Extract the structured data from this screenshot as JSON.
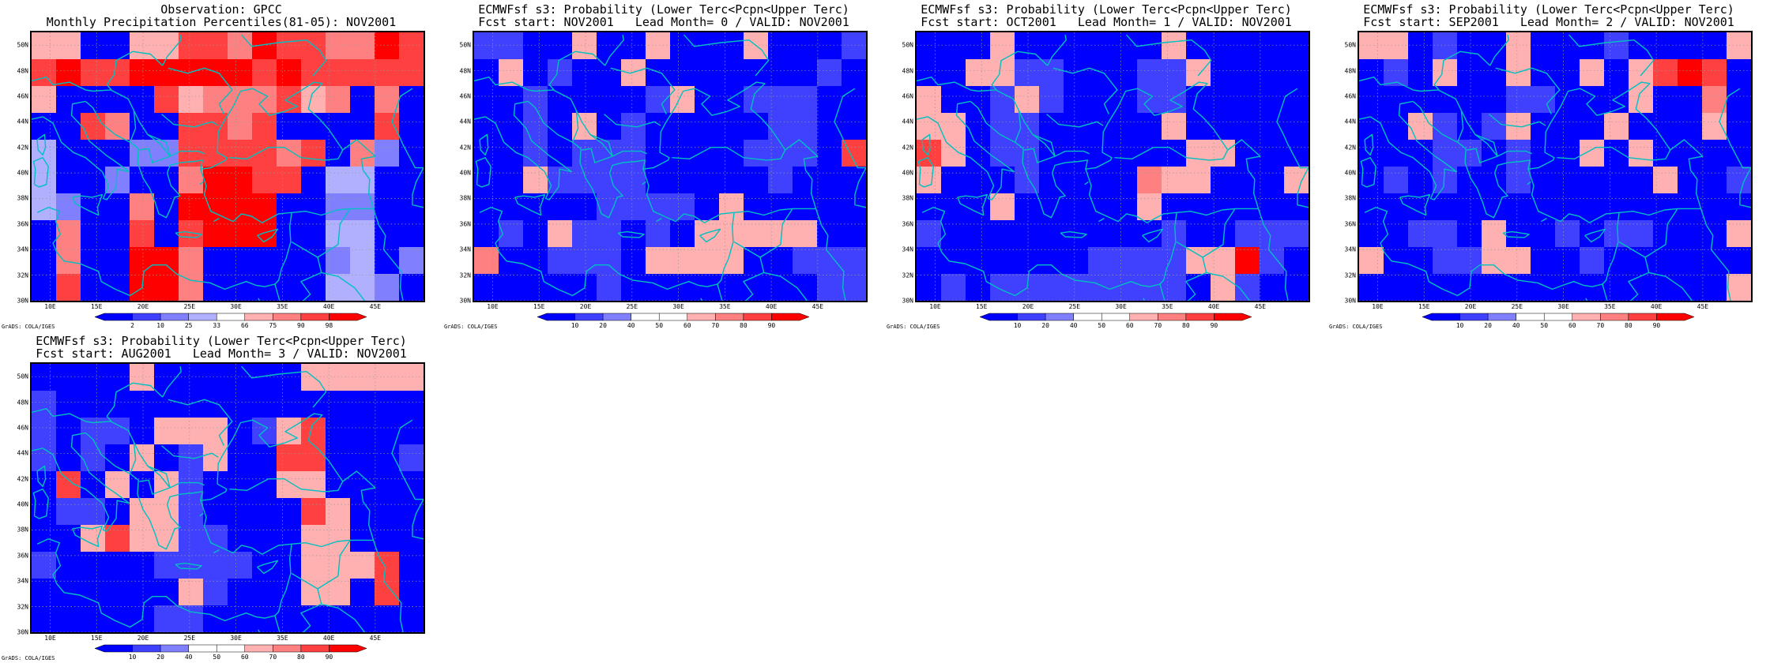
{
  "panels": [
    {
      "title_line1": "Observation: GPCC",
      "title_line2": "Monthly Precipitation Percentiles(81-05): NOV2001",
      "legend": {
        "labels": [
          "2",
          "10",
          "25",
          "33",
          "66",
          "75",
          "90",
          "98"
        ],
        "colors": [
          "#0000ff",
          "#4040ff",
          "#8080ff",
          "#b0b0ff",
          "#ffffff",
          "#ffb0b0",
          "#ff8080",
          "#ff4040",
          "#ff0000"
        ]
      },
      "credit": "GrADS: COLA/IGES",
      "grid": [
        [
          5,
          5,
          0,
          0,
          5,
          5,
          7,
          7,
          6,
          8,
          7,
          7,
          6,
          6,
          8,
          7
        ],
        [
          7,
          8,
          7,
          7,
          8,
          8,
          8,
          8,
          8,
          7,
          8,
          7,
          7,
          7,
          7,
          7
        ],
        [
          5,
          0,
          0,
          0,
          0,
          7,
          5,
          6,
          6,
          6,
          7,
          5,
          6,
          0,
          6,
          0
        ],
        [
          0,
          0,
          7,
          6,
          0,
          0,
          7,
          7,
          6,
          7,
          0,
          0,
          0,
          0,
          7,
          0
        ],
        [
          3,
          0,
          0,
          0,
          2,
          2,
          7,
          7,
          7,
          7,
          6,
          7,
          0,
          6,
          2,
          0
        ],
        [
          3,
          0,
          0,
          2,
          0,
          0,
          6,
          8,
          8,
          7,
          7,
          0,
          3,
          3,
          0,
          0
        ],
        [
          3,
          2,
          0,
          0,
          6,
          0,
          8,
          8,
          8,
          8,
          0,
          0,
          2,
          2,
          0,
          0
        ],
        [
          0,
          6,
          0,
          0,
          7,
          0,
          7,
          8,
          8,
          8,
          0,
          0,
          3,
          3,
          0,
          0
        ],
        [
          0,
          6,
          0,
          0,
          8,
          8,
          6,
          0,
          0,
          0,
          0,
          0,
          2,
          3,
          0,
          2
        ],
        [
          0,
          7,
          0,
          0,
          8,
          8,
          6,
          0,
          0,
          0,
          0,
          0,
          3,
          3,
          2,
          0
        ]
      ]
    },
    {
      "title_line1": "ECMWFsf s3: Probability (Lower Terc<Pcpn<Upper Terc)",
      "title_line2": "Fcst start: NOV2001   Lead Month= 0 / VALID: NOV2001",
      "legend": {
        "labels": [
          "10",
          "20",
          "40",
          "50",
          "60",
          "70",
          "80",
          "90"
        ],
        "colors": [
          "#0000ff",
          "#4040ff",
          "#8080ff",
          "#ffffff",
          "#ffffff",
          "#ffb0b0",
          "#ff8080",
          "#ff4040",
          "#ff0000"
        ]
      },
      "credit": "GrADS: COLA/IGES",
      "grid": [
        [
          1,
          1,
          0,
          0,
          5,
          0,
          0,
          5,
          0,
          0,
          0,
          5,
          0,
          0,
          0,
          1
        ],
        [
          0,
          5,
          0,
          1,
          0,
          0,
          5,
          0,
          0,
          0,
          0,
          0,
          0,
          0,
          1,
          0
        ],
        [
          0,
          0,
          1,
          0,
          0,
          0,
          0,
          1,
          5,
          0,
          0,
          1,
          1,
          1,
          0,
          0
        ],
        [
          0,
          0,
          1,
          0,
          5,
          0,
          1,
          0,
          0,
          0,
          0,
          0,
          1,
          1,
          0,
          0
        ],
        [
          0,
          0,
          1,
          0,
          1,
          1,
          1,
          0,
          0,
          0,
          0,
          1,
          1,
          1,
          0,
          7
        ],
        [
          0,
          0,
          5,
          1,
          1,
          1,
          1,
          0,
          0,
          0,
          0,
          0,
          1,
          0,
          0,
          0
        ],
        [
          0,
          0,
          0,
          0,
          0,
          1,
          1,
          1,
          1,
          0,
          5,
          0,
          0,
          0,
          0,
          0
        ],
        [
          0,
          1,
          0,
          5,
          1,
          1,
          0,
          1,
          0,
          5,
          5,
          5,
          5,
          5,
          0,
          0
        ],
        [
          6,
          0,
          0,
          1,
          1,
          1,
          0,
          5,
          5,
          5,
          5,
          0,
          0,
          1,
          1,
          1
        ],
        [
          0,
          0,
          0,
          0,
          0,
          1,
          0,
          0,
          0,
          0,
          0,
          0,
          0,
          0,
          1,
          1
        ]
      ]
    },
    {
      "title_line1": "ECMWFsf s3: Probability (Lower Terc<Pcpn<Upper Terc)",
      "title_line2": "Fcst start: OCT2001   Lead Month= 1 / VALID: NOV2001",
      "legend": {
        "labels": [
          "10",
          "20",
          "40",
          "50",
          "60",
          "70",
          "80",
          "90"
        ],
        "colors": [
          "#0000ff",
          "#4040ff",
          "#8080ff",
          "#ffffff",
          "#ffffff",
          "#ffb0b0",
          "#ff8080",
          "#ff4040",
          "#ff0000"
        ]
      },
      "credit": "GrADS: COLA/IGES",
      "grid": [
        [
          0,
          0,
          0,
          5,
          0,
          0,
          0,
          0,
          0,
          0,
          5,
          0,
          0,
          0,
          0,
          0
        ],
        [
          0,
          0,
          5,
          5,
          1,
          1,
          0,
          0,
          0,
          1,
          1,
          5,
          0,
          0,
          0,
          0
        ],
        [
          5,
          0,
          0,
          1,
          5,
          1,
          0,
          0,
          0,
          1,
          1,
          0,
          0,
          0,
          0,
          0
        ],
        [
          5,
          5,
          0,
          1,
          1,
          0,
          0,
          0,
          0,
          0,
          5,
          0,
          0,
          0,
          0,
          0
        ],
        [
          7,
          5,
          0,
          1,
          1,
          0,
          0,
          0,
          0,
          0,
          0,
          5,
          5,
          0,
          0,
          0
        ],
        [
          5,
          0,
          0,
          0,
          1,
          0,
          0,
          0,
          0,
          6,
          5,
          5,
          0,
          0,
          0,
          5
        ],
        [
          0,
          0,
          0,
          5,
          0,
          0,
          0,
          0,
          0,
          5,
          0,
          0,
          0,
          0,
          0,
          0
        ],
        [
          1,
          0,
          0,
          0,
          0,
          0,
          0,
          0,
          0,
          0,
          1,
          0,
          0,
          1,
          1,
          1
        ],
        [
          0,
          0,
          0,
          0,
          0,
          0,
          0,
          1,
          1,
          1,
          1,
          5,
          5,
          8,
          1,
          0
        ],
        [
          0,
          1,
          0,
          1,
          1,
          1,
          1,
          1,
          1,
          1,
          1,
          0,
          5,
          1,
          0,
          0
        ]
      ]
    },
    {
      "title_line1": "ECMWFsf s3: Probability (Lower Terc<Pcpn<Upper Terc)",
      "title_line2": "Fcst start: SEP2001   Lead Month= 2 / VALID: NOV2001",
      "legend": {
        "labels": [
          "10",
          "20",
          "40",
          "50",
          "60",
          "70",
          "80",
          "90"
        ],
        "colors": [
          "#0000ff",
          "#4040ff",
          "#8080ff",
          "#ffffff",
          "#ffffff",
          "#ffb0b0",
          "#ff8080",
          "#ff4040",
          "#ff0000"
        ]
      },
      "credit": "GrADS: COLA/IGES",
      "grid": [
        [
          5,
          5,
          0,
          1,
          0,
          0,
          5,
          0,
          0,
          0,
          1,
          0,
          0,
          0,
          0,
          5
        ],
        [
          0,
          1,
          0,
          5,
          0,
          0,
          5,
          0,
          0,
          5,
          0,
          5,
          7,
          8,
          7,
          0
        ],
        [
          0,
          0,
          0,
          0,
          0,
          0,
          1,
          1,
          0,
          0,
          0,
          5,
          0,
          0,
          6,
          0
        ],
        [
          0,
          0,
          5,
          1,
          0,
          1,
          5,
          0,
          0,
          0,
          5,
          0,
          0,
          0,
          5,
          0
        ],
        [
          0,
          0,
          0,
          1,
          1,
          0,
          1,
          0,
          0,
          5,
          0,
          5,
          0,
          0,
          0,
          0
        ],
        [
          0,
          1,
          0,
          1,
          0,
          0,
          1,
          0,
          0,
          0,
          0,
          0,
          5,
          0,
          0,
          1
        ],
        [
          0,
          0,
          0,
          0,
          0,
          0,
          0,
          0,
          0,
          0,
          0,
          0,
          0,
          0,
          0,
          0
        ],
        [
          0,
          0,
          1,
          1,
          0,
          5,
          0,
          0,
          1,
          0,
          1,
          1,
          0,
          0,
          0,
          5
        ],
        [
          5,
          0,
          0,
          1,
          1,
          5,
          5,
          0,
          0,
          1,
          0,
          0,
          0,
          0,
          0,
          0
        ],
        [
          0,
          0,
          0,
          0,
          0,
          0,
          0,
          0,
          0,
          0,
          0,
          0,
          0,
          0,
          0,
          5
        ]
      ]
    },
    {
      "title_line1": "ECMWFsf s3: Probability (Lower Terc<Pcpn<Upper Terc)",
      "title_line2": "Fcst start: AUG2001   Lead Month= 3 / VALID: NOV2001",
      "legend": {
        "labels": [
          "10",
          "20",
          "40",
          "50",
          "60",
          "70",
          "80",
          "90"
        ],
        "colors": [
          "#0000ff",
          "#4040ff",
          "#8080ff",
          "#ffffff",
          "#ffffff",
          "#ffb0b0",
          "#ff8080",
          "#ff4040",
          "#ff0000"
        ]
      },
      "credit": "GrADS: COLA/IGES",
      "grid": [
        [
          0,
          0,
          0,
          0,
          5,
          0,
          0,
          0,
          0,
          0,
          0,
          5,
          5,
          5,
          5,
          5
        ],
        [
          1,
          0,
          0,
          0,
          0,
          0,
          0,
          0,
          0,
          0,
          0,
          0,
          0,
          0,
          0,
          0
        ],
        [
          1,
          0,
          1,
          1,
          0,
          5,
          5,
          5,
          0,
          1,
          5,
          7,
          0,
          0,
          0,
          0
        ],
        [
          1,
          0,
          1,
          0,
          5,
          0,
          1,
          5,
          0,
          0,
          7,
          7,
          0,
          0,
          0,
          1
        ],
        [
          0,
          7,
          0,
          5,
          0,
          5,
          1,
          0,
          0,
          0,
          5,
          5,
          0,
          0,
          0,
          0
        ],
        [
          0,
          1,
          1,
          0,
          5,
          5,
          1,
          0,
          0,
          0,
          0,
          7,
          5,
          0,
          0,
          0
        ],
        [
          0,
          0,
          5,
          7,
          5,
          5,
          1,
          1,
          0,
          0,
          0,
          5,
          5,
          0,
          0,
          0
        ],
        [
          1,
          0,
          0,
          0,
          0,
          1,
          1,
          1,
          1,
          0,
          0,
          5,
          5,
          5,
          7,
          0
        ],
        [
          0,
          0,
          0,
          0,
          0,
          0,
          5,
          1,
          0,
          0,
          0,
          5,
          5,
          0,
          7,
          0
        ],
        [
          0,
          0,
          0,
          0,
          0,
          1,
          1,
          0,
          0,
          0,
          0,
          0,
          0,
          0,
          0,
          0
        ]
      ]
    }
  ],
  "lat_labels": [
    "50N",
    "48N",
    "46N",
    "44N",
    "42N",
    "40N",
    "38N",
    "36N",
    "34N",
    "32N",
    "30N"
  ],
  "lon_labels": [
    "10E",
    "15E",
    "20E",
    "25E",
    "30E",
    "35E",
    "40E",
    "45E"
  ],
  "colors": {
    "coastline": "#00c0c0",
    "gridline": "#9a9a9a",
    "frame": "#000000"
  }
}
